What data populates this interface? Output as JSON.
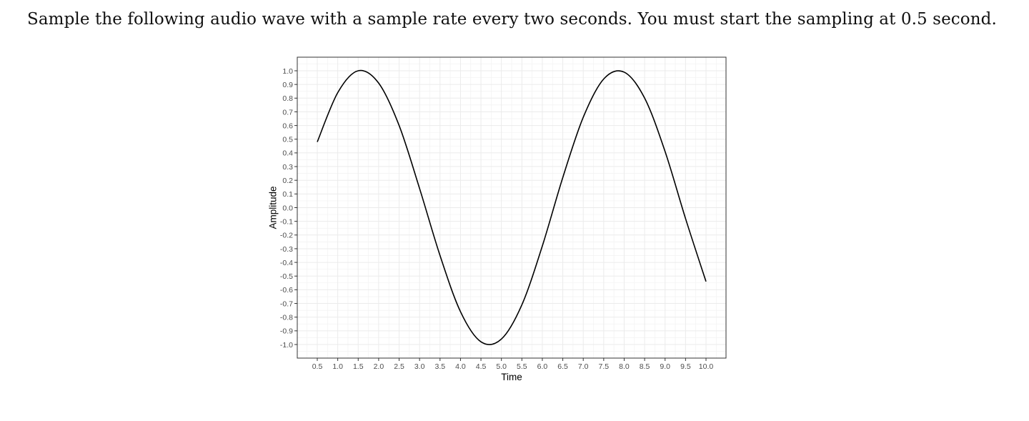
{
  "question": {
    "text": "Sample the following audio wave with a sample rate every two seconds. You must start the sampling at 0.5 second."
  },
  "chart_data": {
    "type": "line",
    "title": "",
    "xlabel": "Time",
    "ylabel": "Amplitude",
    "xlim": [
      0.5,
      10.0
    ],
    "ylim": [
      -1.0,
      1.0
    ],
    "grid": true,
    "legend": "none",
    "line_color": "#000000",
    "grid_color": "#ebebeb",
    "panel_border_color": "#333333",
    "x_ticks": [
      "0.5",
      "1.0",
      "1.5",
      "2.0",
      "2.5",
      "3.0",
      "3.5",
      "4.0",
      "4.5",
      "5.0",
      "5.5",
      "6.0",
      "6.5",
      "7.0",
      "7.5",
      "8.0",
      "8.5",
      "9.0",
      "9.5",
      "10.0"
    ],
    "y_ticks": [
      "1.0",
      "0.9",
      "0.8",
      "0.7",
      "0.6",
      "0.5",
      "0.4",
      "0.3",
      "0.2",
      "0.1",
      "0.0",
      "-0.1",
      "-0.2",
      "-0.3",
      "-0.4",
      "-0.5",
      "-0.6",
      "-0.7",
      "-0.8",
      "-0.9",
      "-1.0"
    ],
    "series": [
      {
        "x": [
          0.5,
          1.0,
          1.5,
          2.0,
          2.5,
          3.0,
          3.5,
          4.0,
          4.5,
          5.0,
          5.5,
          6.0,
          6.5,
          7.0,
          7.5,
          8.0,
          8.5,
          9.0,
          9.5,
          10.0
        ],
        "values": [
          0.48,
          0.84,
          1.0,
          0.91,
          0.6,
          0.14,
          -0.35,
          -0.76,
          -0.98,
          -0.96,
          -0.71,
          -0.28,
          0.22,
          0.66,
          0.94,
          0.99,
          0.8,
          0.41,
          -0.08,
          -0.54
        ]
      }
    ]
  }
}
